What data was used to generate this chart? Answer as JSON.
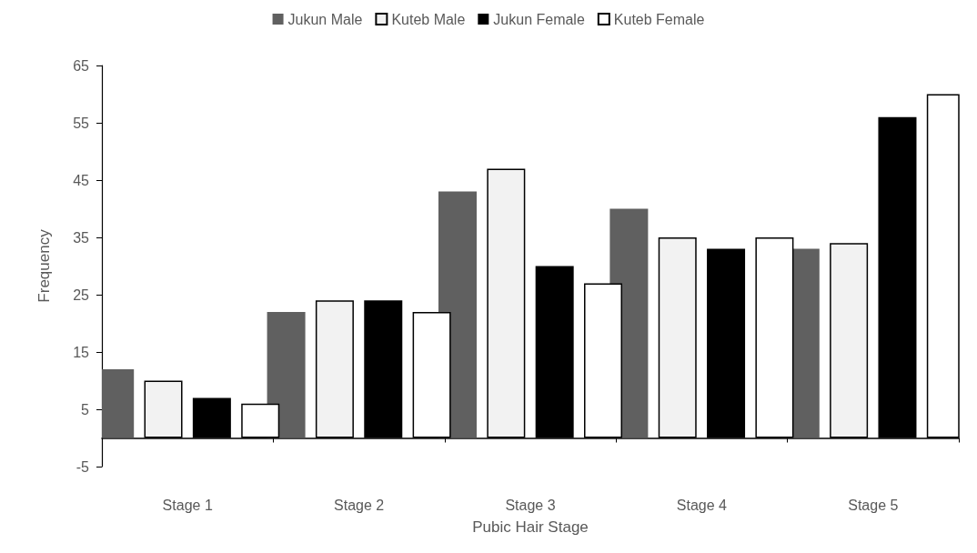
{
  "chart_data": {
    "type": "bar",
    "xlabel": "Pubic Hair Stage",
    "ylabel": "Frequency",
    "categories": [
      "Stage 1",
      "Stage 2",
      "Stage 3",
      "Stage 4",
      "Stage 5"
    ],
    "series": [
      {
        "name": "Jukun Male",
        "color": "#606060",
        "values": [
          12,
          22,
          43,
          40,
          33
        ]
      },
      {
        "name": "Kuteb Male",
        "color": "#f2f2f2",
        "values": [
          10,
          24,
          47,
          35,
          34
        ]
      },
      {
        "name": "Jukun Female",
        "color": "#000000",
        "values": [
          7,
          24,
          30,
          33,
          56
        ]
      },
      {
        "name": "Kuteb Female",
        "color": "#ffffff",
        "values": [
          6,
          22,
          27,
          35,
          60
        ]
      }
    ],
    "ylim": [
      -5,
      65
    ],
    "yticks": [
      -5,
      5,
      15,
      25,
      35,
      45,
      55,
      65
    ],
    "grid": false,
    "legend": "top"
  }
}
